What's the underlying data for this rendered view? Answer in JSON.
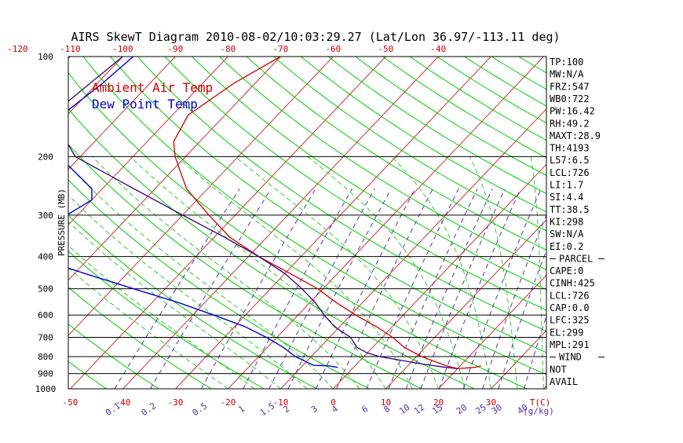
{
  "chart_data": {
    "type": "line",
    "title": "AIRS SkewT Diagram 2010-08-02/10:03:29.27 (Lat/Lon 36.97/-113.11 deg)",
    "ylabel": "PRESSURE (MB)",
    "xlabel_bottom_unit": "T(C)",
    "mixing_ratio_unit": "(g/kg)",
    "pressure_ticks": [
      100,
      200,
      300,
      400,
      500,
      600,
      700,
      800,
      900,
      1000
    ],
    "top_temp_ticks": [
      -120,
      -110,
      -100,
      -90,
      -80,
      -70,
      -60,
      -50,
      -40
    ],
    "bottom_temp_ticks": [
      -50,
      -40,
      -30,
      -20,
      -10,
      0,
      10,
      20,
      30
    ],
    "mixing_ratio_ticks": [
      "0.1",
      "0.2",
      "0.5",
      "1",
      "1.5",
      "2",
      "3",
      "4",
      "6",
      "8",
      "10",
      "12",
      "15",
      "20",
      "25",
      "30",
      "40"
    ],
    "ptop": 100,
    "pbot": 1000,
    "legend": [
      "Ambient Air Temp",
      "Dew Point Temp"
    ],
    "colors": {
      "temp": "#cc0000",
      "dew": "#0000cc",
      "parcel": "#33007a",
      "isotherm": "#cc3333",
      "dry_adiabat": "#00cc00",
      "moist_adiabat": "#33cc33",
      "mixing_ratio": "#5533aa",
      "isobar": "#000000"
    },
    "series": [
      {
        "name": "Ambient Air Temp",
        "color": "#cc0000",
        "points": [
          [
            100,
            -70
          ],
          [
            120,
            -74
          ],
          [
            150,
            -77
          ],
          [
            180,
            -75
          ],
          [
            200,
            -72
          ],
          [
            250,
            -64
          ],
          [
            300,
            -55
          ],
          [
            350,
            -47
          ],
          [
            400,
            -38
          ],
          [
            450,
            -29
          ],
          [
            500,
            -21
          ],
          [
            550,
            -15
          ],
          [
            600,
            -9
          ],
          [
            650,
            -3
          ],
          [
            700,
            2
          ],
          [
            750,
            6
          ],
          [
            800,
            11
          ],
          [
            850,
            17
          ],
          [
            870,
            20
          ],
          [
            862,
            23
          ],
          [
            853,
            24
          ]
        ]
      },
      {
        "name": "Dew Point Temp",
        "color": "#0000cc",
        "points": [
          [
            100,
            -98
          ],
          [
            120,
            -99
          ],
          [
            150,
            -101
          ],
          [
            180,
            -97
          ],
          [
            200,
            -94
          ],
          [
            250,
            -82
          ],
          [
            270,
            -80
          ],
          [
            300,
            -82
          ],
          [
            350,
            -82
          ],
          [
            400,
            -81
          ],
          [
            450,
            -68
          ],
          [
            500,
            -56
          ],
          [
            550,
            -45
          ],
          [
            600,
            -36
          ],
          [
            650,
            -28
          ],
          [
            700,
            -22
          ],
          [
            750,
            -17
          ],
          [
            800,
            -13
          ],
          [
            850,
            -8
          ],
          [
            853,
            -5
          ],
          [
            862,
            -3
          ]
        ]
      },
      {
        "name": "",
        "color": "#33007a",
        "points": [
          [
            100,
            -100
          ],
          [
            150,
            -103
          ],
          [
            200,
            -91
          ],
          [
            250,
            -74
          ],
          [
            300,
            -60
          ],
          [
            350,
            -48
          ],
          [
            400,
            -38
          ],
          [
            450,
            -30
          ],
          [
            500,
            -24
          ],
          [
            550,
            -19
          ],
          [
            600,
            -15
          ],
          [
            650,
            -11
          ],
          [
            700,
            -6
          ],
          [
            750,
            -3
          ],
          [
            780,
            0
          ],
          [
            800,
            3
          ],
          [
            840,
            12
          ],
          [
            860,
            17
          ],
          [
            870,
            20
          ]
        ]
      }
    ],
    "indices": [
      {
        "text": "TP:100"
      },
      {
        "text": "MW:N/A"
      },
      {
        "text": "FRZ:547"
      },
      {
        "text": "WB0:722"
      },
      {
        "text": "PW:16.42"
      },
      {
        "text": "RH:49.2"
      },
      {
        "text": "MAXT:28.9"
      },
      {
        "text": "TH:4193"
      },
      {
        "text": "L57:6.5"
      },
      {
        "text": "LCL:726"
      },
      {
        "text": "LI:1.7"
      },
      {
        "text": "SI:4.4"
      },
      {
        "text": "TT:38.5"
      },
      {
        "text": "KI:298"
      },
      {
        "text": "SW:N/A"
      },
      {
        "text": "EI:0.2"
      },
      {
        "text": "PARCEL"
      },
      {
        "text": "CAPE:0"
      },
      {
        "text": "CINH:425"
      },
      {
        "text": "LCL:726"
      },
      {
        "text": "CAP:0.0"
      },
      {
        "text": "LFC:325"
      },
      {
        "text": "EL:299"
      },
      {
        "text": "MPL:291"
      },
      {
        "text": "WIND"
      },
      {
        "text": "NOT"
      },
      {
        "text": "AVAIL"
      }
    ]
  }
}
